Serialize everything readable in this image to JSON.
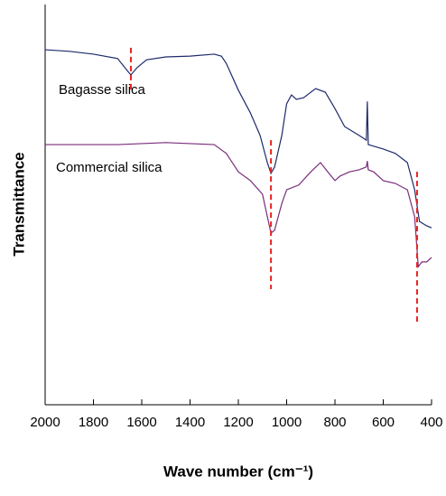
{
  "chart_data": {
    "type": "line",
    "xlabel": "Wave number (cm⁻¹)",
    "ylabel": "Transmittance",
    "xlim": [
      2000,
      400
    ],
    "xticks": [
      2000,
      1800,
      1600,
      1400,
      1200,
      1000,
      800,
      600,
      400
    ],
    "ylim": [
      0,
      100
    ],
    "series": [
      {
        "name": "Bagasse silica",
        "color": "#1f2a6b",
        "x": [
          2000,
          1900,
          1800,
          1700,
          1660,
          1645,
          1620,
          1580,
          1500,
          1400,
          1300,
          1270,
          1250,
          1200,
          1150,
          1110,
          1080,
          1065,
          1050,
          1020,
          1000,
          980,
          960,
          930,
          880,
          840,
          800,
          760,
          700,
          670,
          666,
          662,
          600,
          550,
          500,
          470,
          450,
          420,
          400
        ],
        "values": [
          88.7,
          88.3,
          87.6,
          86.5,
          83.5,
          82.4,
          84.2,
          86.2,
          86.9,
          87.1,
          87.6,
          87.1,
          85.3,
          78.6,
          72.9,
          67.3,
          60.5,
          57.8,
          59.4,
          67.3,
          75.2,
          77.4,
          76.3,
          76.7,
          79.0,
          78.1,
          74.0,
          69.5,
          67.3,
          66.1,
          75.8,
          65.0,
          63.9,
          62.8,
          60.5,
          53.7,
          45.8,
          44.7,
          44.2
        ]
      },
      {
        "name": "Commercial silica",
        "color": "#7b2c7b",
        "x": [
          2000,
          1700,
          1500,
          1300,
          1250,
          1200,
          1150,
          1100,
          1080,
          1065,
          1050,
          1020,
          1000,
          950,
          900,
          860,
          830,
          800,
          780,
          740,
          700,
          670,
          666,
          662,
          640,
          600,
          550,
          500,
          470,
          455,
          440,
          420,
          400
        ],
        "values": [
          65.0,
          65.0,
          65.5,
          65.0,
          62.8,
          58.2,
          56.0,
          52.6,
          47.0,
          42.9,
          43.6,
          50.3,
          53.7,
          54.9,
          58.2,
          60.5,
          58.2,
          56.0,
          57.1,
          58.2,
          58.7,
          59.4,
          60.9,
          58.7,
          58.2,
          56.0,
          55.3,
          53.7,
          47.0,
          34.5,
          35.7,
          35.7,
          36.8
        ]
      }
    ],
    "markers": [
      {
        "x": 1645,
        "y": [
          89.2,
          78.6
        ]
      },
      {
        "x": 1065,
        "y": [
          66.1,
          28.9
        ]
      },
      {
        "x": 460,
        "y": [
          58.2,
          20.3
        ]
      }
    ]
  }
}
